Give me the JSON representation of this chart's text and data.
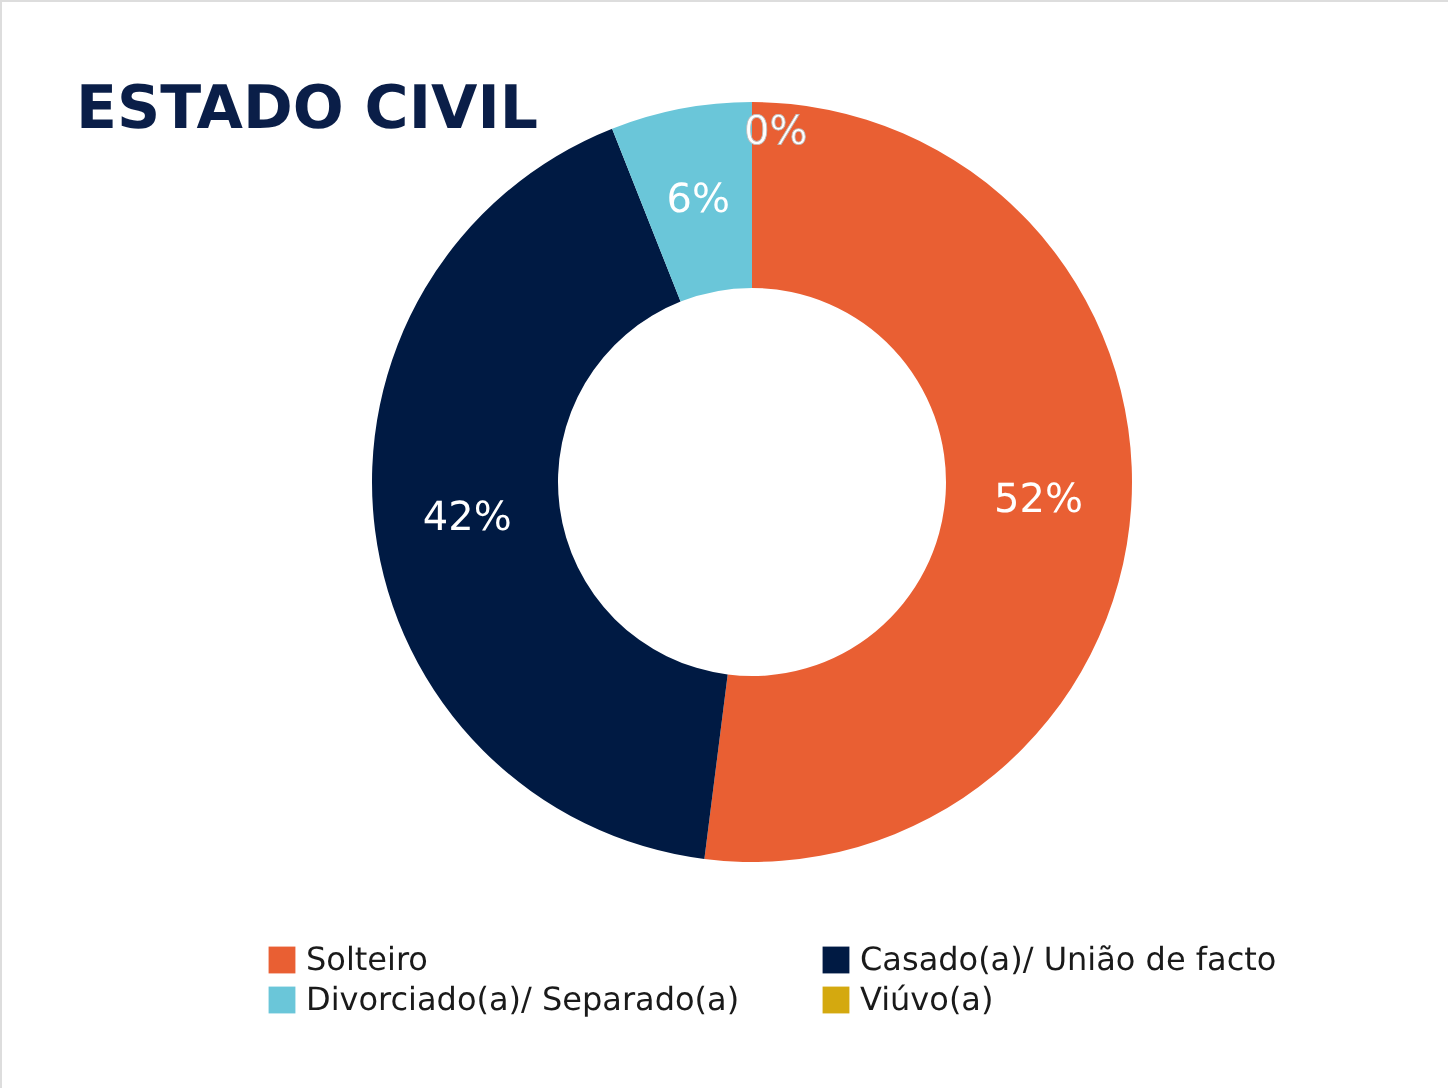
{
  "chart_data": {
    "type": "donut",
    "title": "ESTADO CIVIL",
    "categories": [
      "Solteiro",
      "Casado(a)/ União de facto",
      "Divorciado(a)/ Separado(a)",
      "Viúvo(a)"
    ],
    "values": [
      52,
      42,
      6,
      0
    ],
    "colors": [
      "#e95f33",
      "#001a43",
      "#6ac6d9",
      "#d4a90f"
    ],
    "value_labels": [
      "52%",
      "42%",
      "6%",
      "0%"
    ],
    "legend": "bottom"
  }
}
